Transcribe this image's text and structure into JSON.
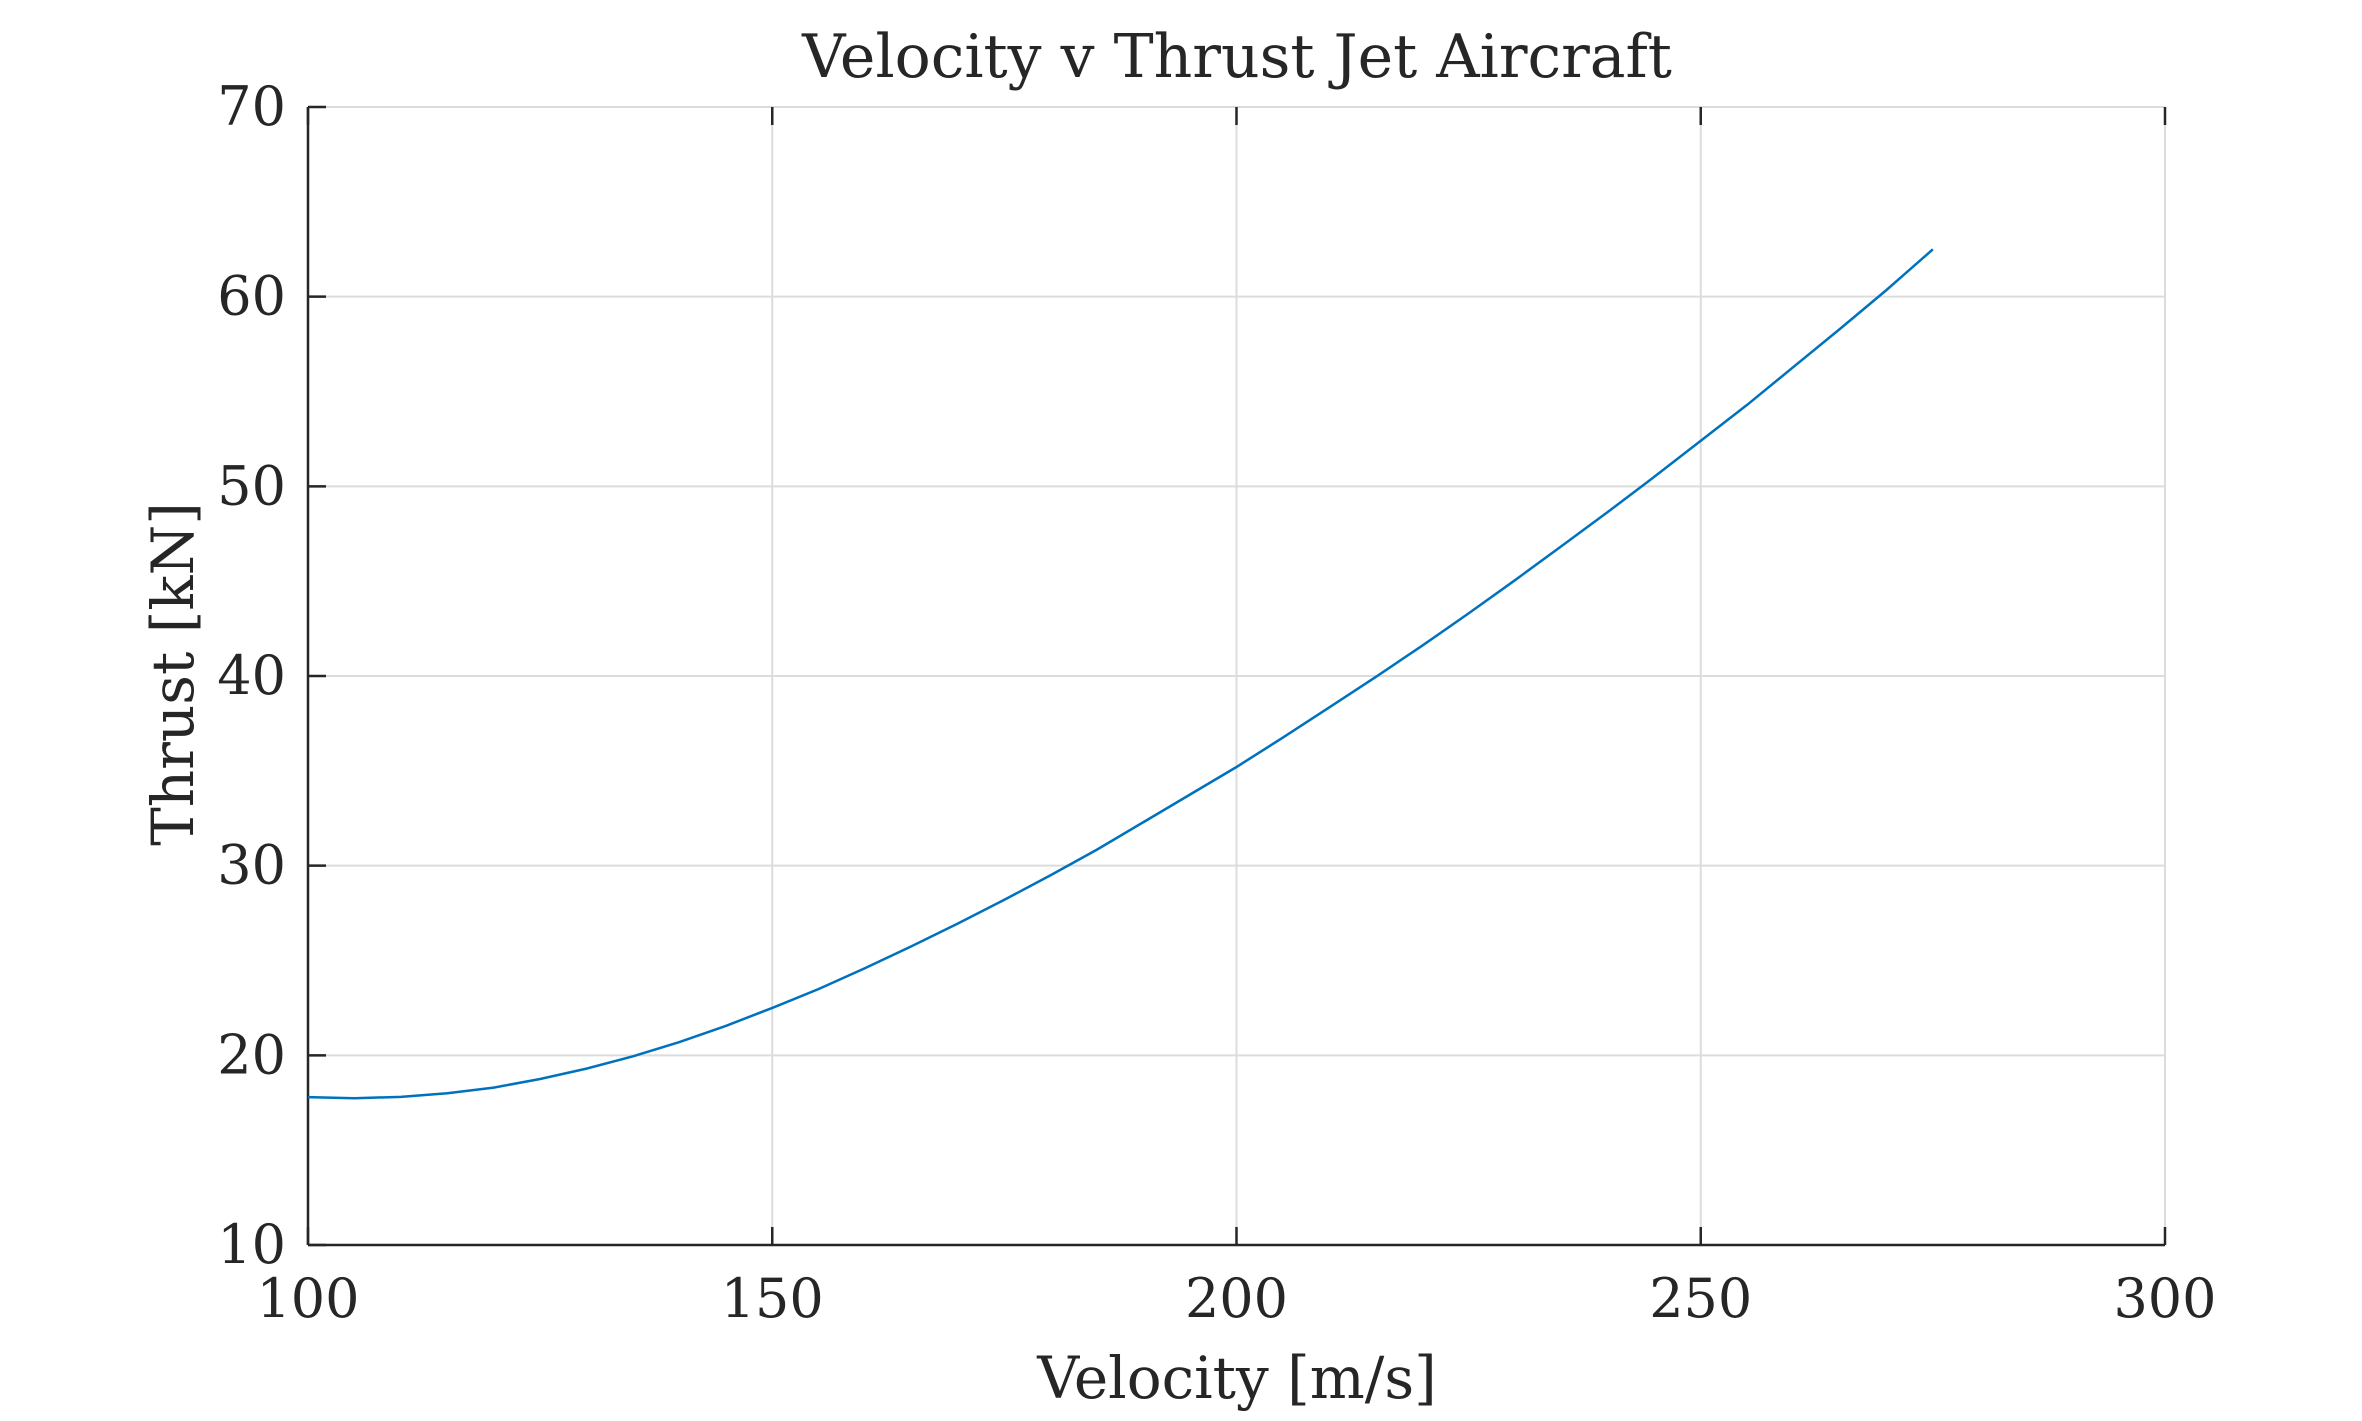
{
  "chart_data": {
    "type": "line",
    "title": "Velocity v Thrust Jet Aircraft",
    "xlabel": "Velocity [m/s]",
    "ylabel": "Thrust [kN]",
    "xlim": [
      100,
      300
    ],
    "ylim": [
      10,
      70
    ],
    "xticks": [
      100,
      150,
      200,
      250,
      300
    ],
    "yticks": [
      10,
      20,
      30,
      40,
      50,
      60,
      70
    ],
    "xtick_labels": [
      "100",
      "150",
      "200",
      "250",
      "300"
    ],
    "ytick_labels": [
      "10",
      "20",
      "30",
      "40",
      "50",
      "60",
      "70"
    ],
    "grid": true,
    "legend": "none",
    "colors": {
      "series": "#0072bd",
      "grid": "#dcdcdc",
      "axis": "#262626"
    },
    "series": [
      {
        "x": [
          100,
          105,
          110,
          115,
          120,
          125,
          130,
          135,
          140,
          145,
          150,
          155,
          160,
          165,
          170,
          175,
          180,
          185,
          190,
          195,
          200,
          205,
          210,
          215,
          220,
          225,
          230,
          235,
          240,
          245,
          250,
          255,
          260,
          265,
          270,
          275
        ],
        "y": [
          17.8,
          17.74,
          17.81,
          18.0,
          18.3,
          18.75,
          19.3,
          19.95,
          20.7,
          21.55,
          22.5,
          23.5,
          24.6,
          25.75,
          26.95,
          28.2,
          29.5,
          30.85,
          32.3,
          33.75,
          35.2,
          36.75,
          38.35,
          39.95,
          41.6,
          43.3,
          45.05,
          46.85,
          48.65,
          50.5,
          52.4,
          54.3,
          56.3,
          58.3,
          60.35,
          62.5
        ]
      }
    ]
  }
}
